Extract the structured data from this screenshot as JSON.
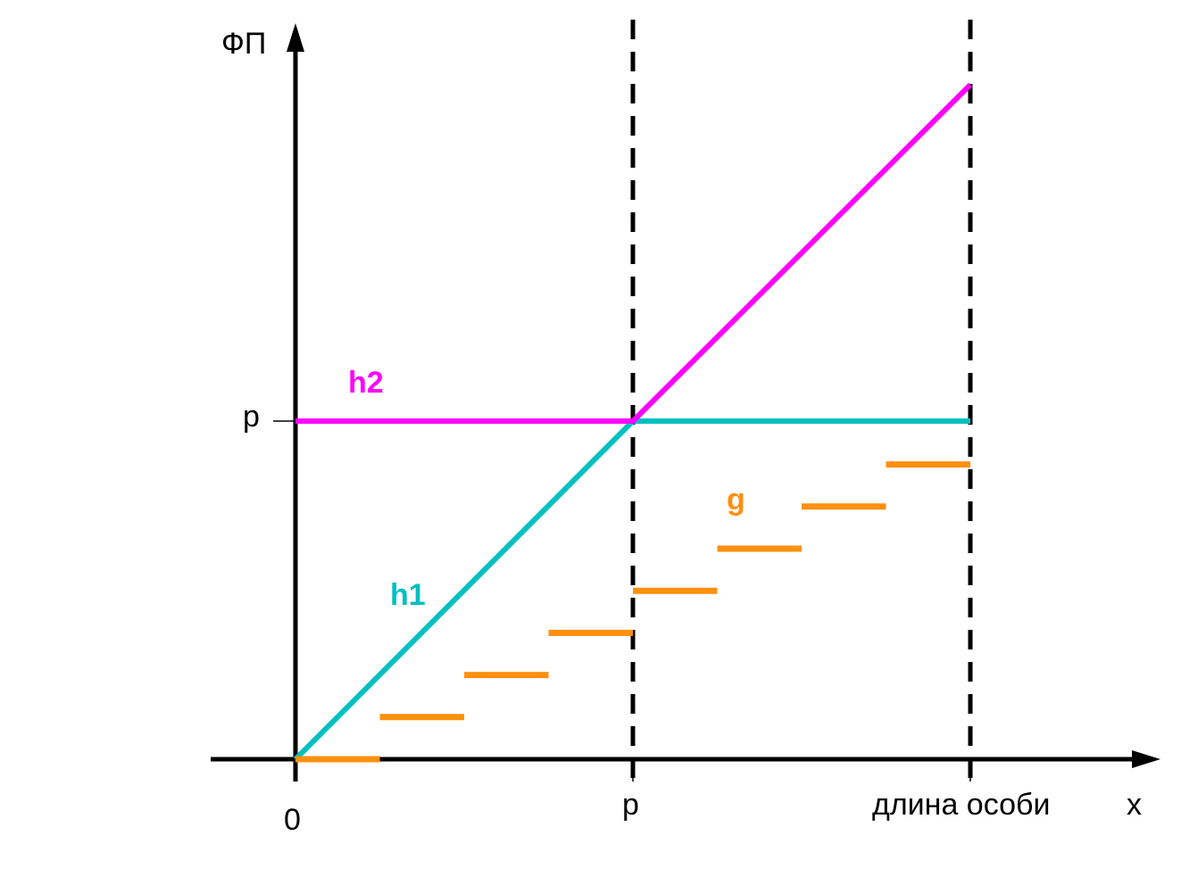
{
  "axes": {
    "y_label": "ФП",
    "x_label": "x",
    "origin_label": "0",
    "y_tick_label": "p",
    "x_tick_p_label": "p",
    "x_tick_end_label": "длина особи"
  },
  "series": {
    "h1": {
      "name": "h1",
      "color": "#00c0c0"
    },
    "h2": {
      "name": "h2",
      "color": "#ff00ff"
    },
    "g": {
      "name": "g",
      "color": "#ff9010"
    }
  },
  "colors": {
    "axis": "#000000",
    "guide": "#000000"
  }
}
